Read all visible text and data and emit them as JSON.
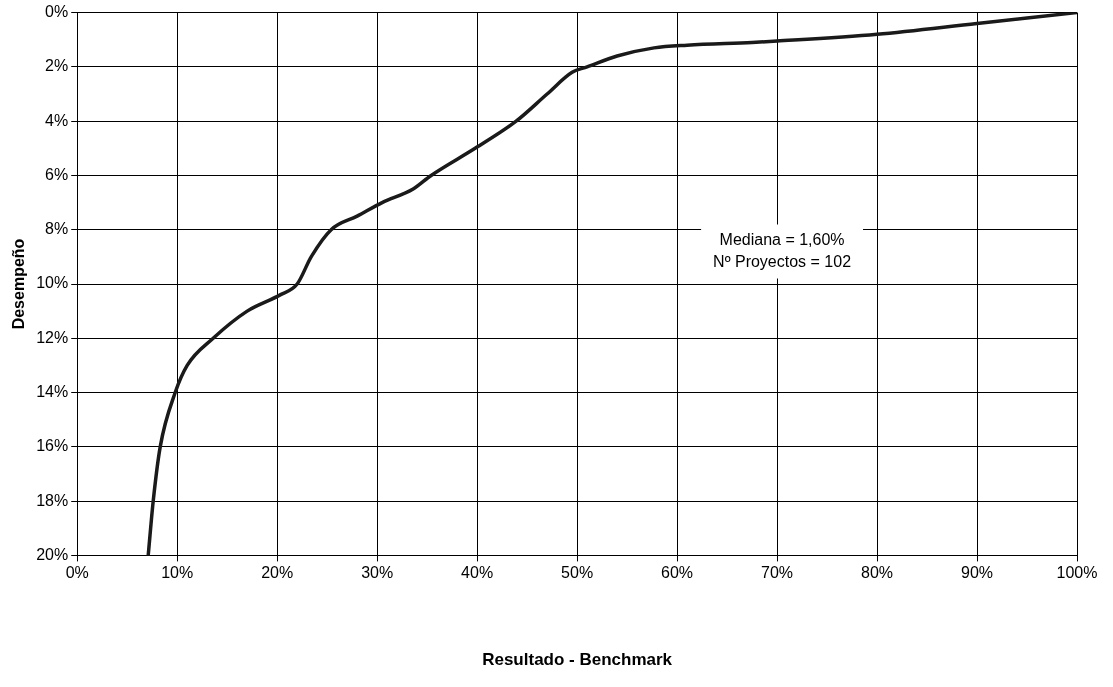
{
  "chart_data": {
    "type": "line",
    "xlabel": "Resultado - Benchmark",
    "ylabel": "Desempeño",
    "annotations": [
      "Mediana = 1,60%",
      "Nº Proyectos = 102"
    ],
    "series": [
      {
        "color": "#1a1a1a",
        "x": [
          7.1,
          7.6,
          8.3,
          9.8,
          11,
          13.6,
          17,
          20.3,
          22,
          23.4,
          25.4,
          28,
          30.5,
          33.6,
          35.4,
          39.8,
          43.9,
          47,
          49.5,
          51,
          54,
          57.7,
          61,
          67.5,
          70,
          80,
          90,
          100
        ],
        "values": [
          20,
          18,
          16,
          14,
          13,
          12,
          11,
          10.4,
          10,
          9,
          8,
          7.5,
          7,
          6.5,
          6,
          5,
          4,
          3,
          2.2,
          2,
          1.6,
          1.3,
          1.2,
          1.1,
          1.05,
          0.8,
          0.4,
          0
        ]
      }
    ],
    "xlim": [
      0,
      100
    ],
    "xticks": [
      {
        "value": 0,
        "label": "0%"
      },
      {
        "value": 10,
        "label": "10%"
      },
      {
        "value": 20,
        "label": "20%"
      },
      {
        "value": 30,
        "label": "30%"
      },
      {
        "value": 40,
        "label": "40%"
      },
      {
        "value": 50,
        "label": "50%"
      },
      {
        "value": 60,
        "label": "60%"
      },
      {
        "value": 70,
        "label": "70%"
      },
      {
        "value": 80,
        "label": "80%"
      },
      {
        "value": 90,
        "label": "90%"
      },
      {
        "value": 100,
        "label": "100%"
      }
    ],
    "ylim": [
      20,
      0
    ],
    "yticks": [
      {
        "value": 0,
        "label": "0%"
      },
      {
        "value": 2,
        "label": "2%"
      },
      {
        "value": 4,
        "label": "4%"
      },
      {
        "value": 6,
        "label": "6%"
      },
      {
        "value": 8,
        "label": "8%"
      },
      {
        "value": 10,
        "label": "10%"
      },
      {
        "value": 12,
        "label": "12%"
      },
      {
        "value": 14,
        "label": "14%"
      },
      {
        "value": 16,
        "label": "16%"
      },
      {
        "value": 18,
        "label": "18%"
      },
      {
        "value": 20,
        "label": "20%"
      }
    ],
    "grid": true,
    "legend": false,
    "marker": "none",
    "line_style": "solid"
  }
}
